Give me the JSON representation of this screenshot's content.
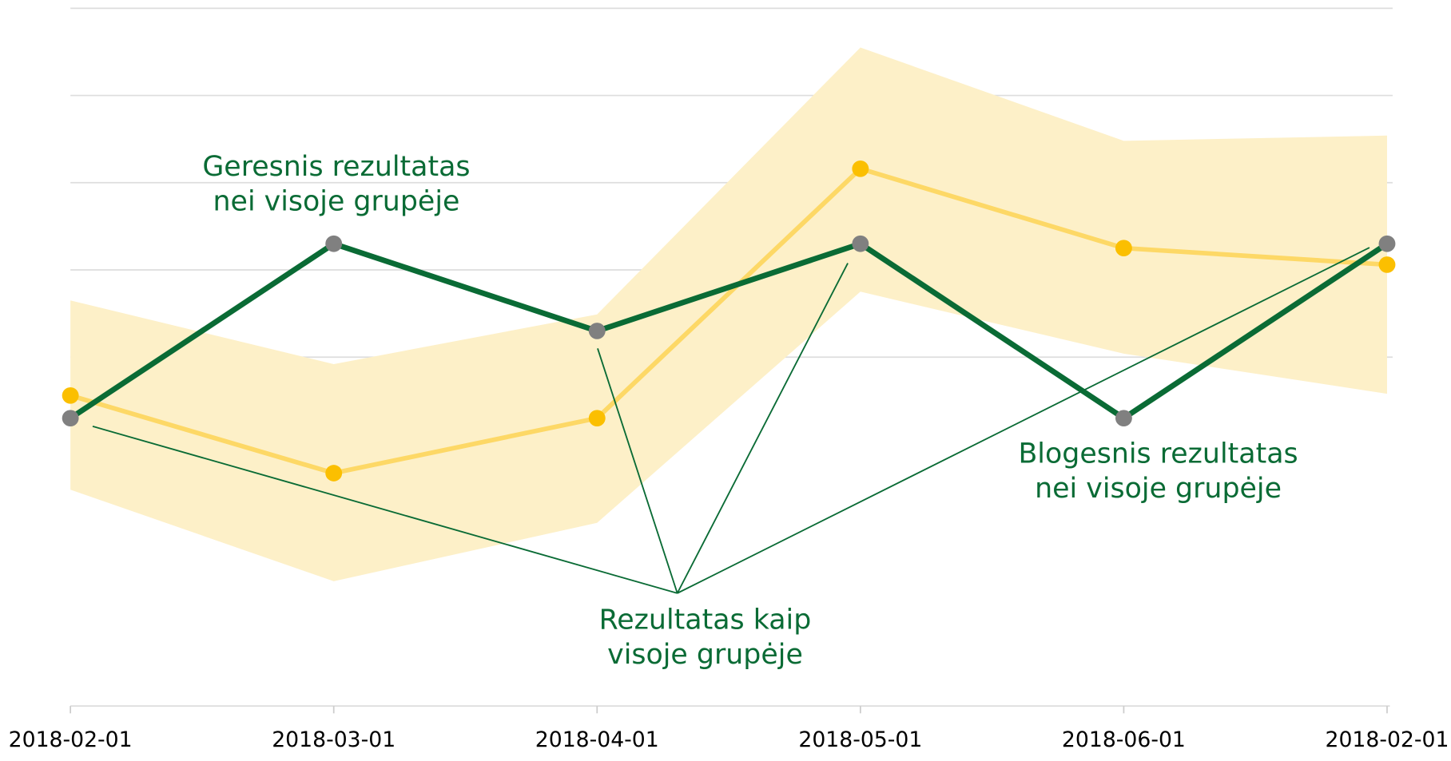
{
  "chart_data": {
    "type": "line",
    "categories": [
      "2018-02-01",
      "2018-03-01",
      "2018-04-01",
      "2018-05-01",
      "2018-06-01",
      "2018-02-01"
    ],
    "series": [
      {
        "color": "#0a6b35",
        "marker_color": "#808080",
        "values": [
          3.3,
          5.3,
          4.3,
          5.3,
          3.3,
          5.3
        ]
      },
      {
        "color": "#fdd866",
        "marker_color": "#fbbf00",
        "values": [
          3.56,
          2.67,
          3.3,
          6.16,
          5.25,
          5.06
        ]
      }
    ],
    "band": {
      "color": "#fdf0c8",
      "upper": [
        4.65,
        3.92,
        4.49,
        7.55,
        6.48,
        6.54
      ],
      "lower": [
        2.48,
        1.43,
        2.1,
        4.75,
        4.04,
        3.58
      ]
    },
    "ylim": [
      0,
      8
    ],
    "yticks": [
      4,
      5,
      6,
      7,
      8
    ],
    "grid": true,
    "annotations": [
      [
        "Geresnis rezultatas",
        "nei visoje grupėje"
      ],
      [
        "Rezultatas kaip",
        "visoje grupėje"
      ],
      [
        "Blogesnis rezultatas",
        "nei visoje grupėje"
      ]
    ]
  }
}
